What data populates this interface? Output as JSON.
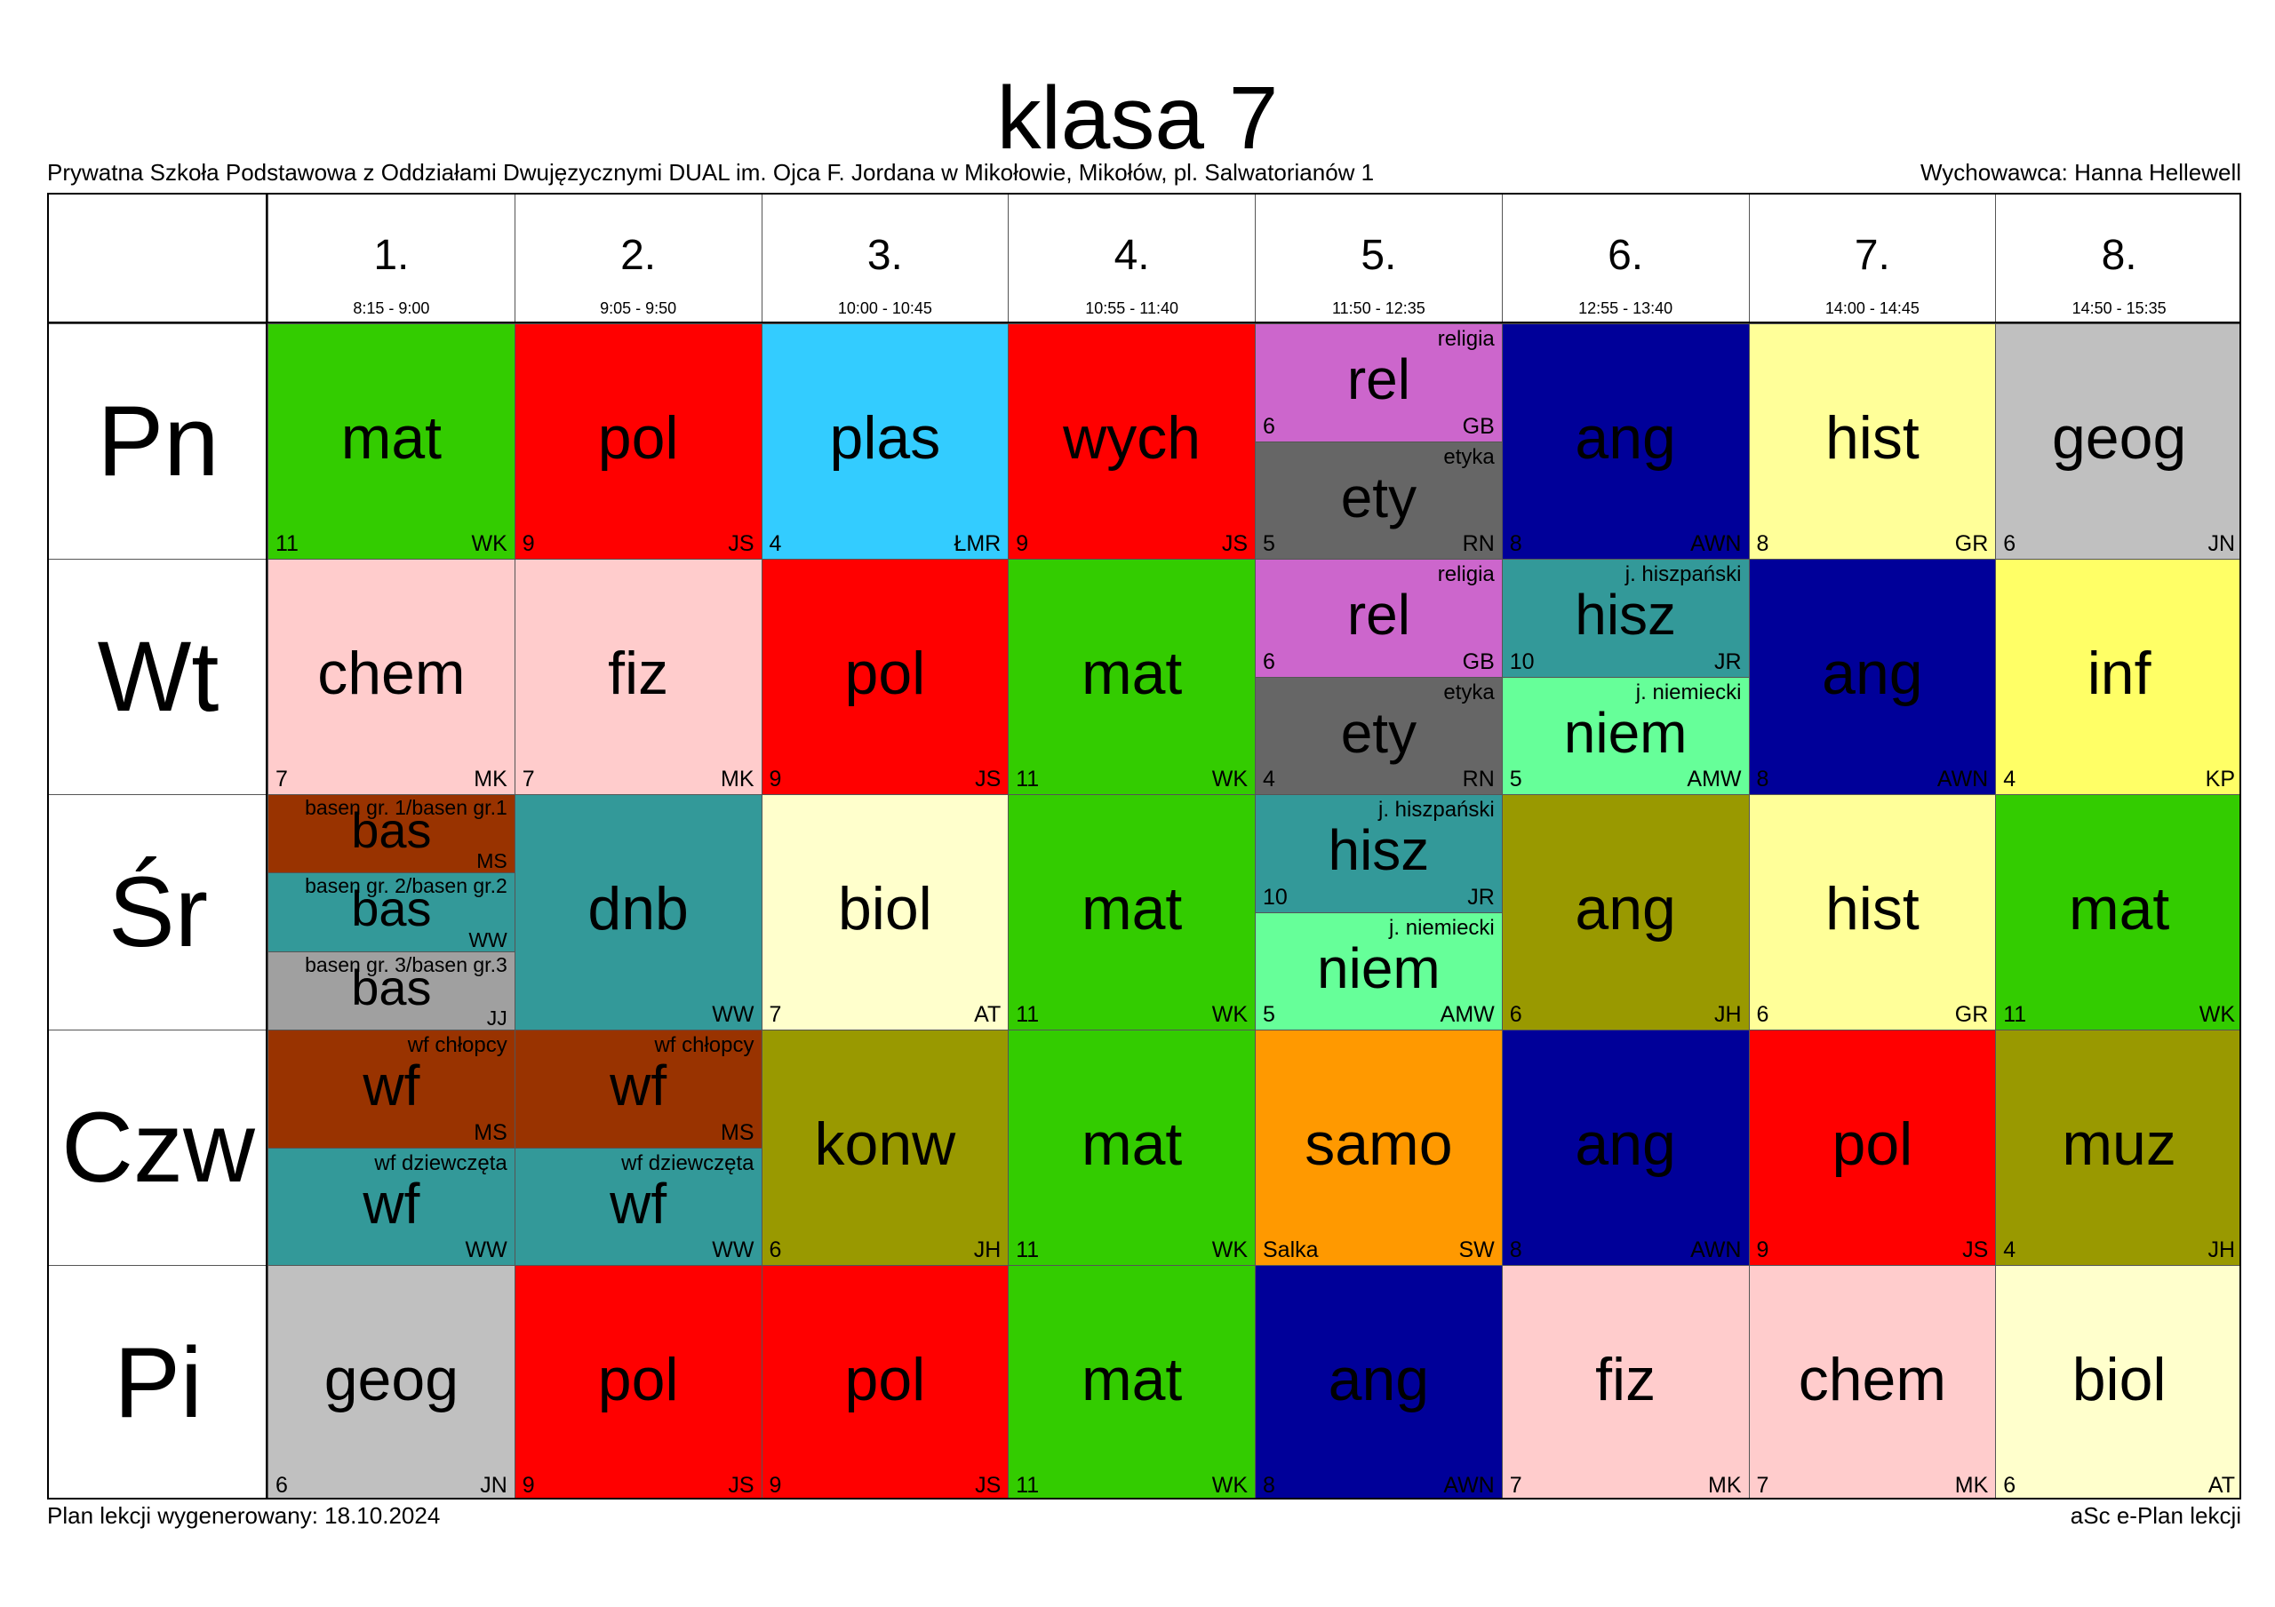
{
  "title": "klasa 7",
  "school": "Prywatna Szkoła Podstawowa z Oddziałami Dwujęzycznymi DUAL im. Ojca F. Jordana w Mikołowie, Mikołów, pl. Salwatorianów 1",
  "homeroom": "Wychowawca: Hanna Hellewell",
  "generated": "Plan lekcji wygenerowany: 18.10.2024",
  "software": "aSc e-Plan lekcji",
  "periods": [
    {
      "num": "1.",
      "time": "8:15 - 9:00"
    },
    {
      "num": "2.",
      "time": "9:05 - 9:50"
    },
    {
      "num": "3.",
      "time": "10:00 - 10:45"
    },
    {
      "num": "4.",
      "time": "10:55 - 11:40"
    },
    {
      "num": "5.",
      "time": "11:50 - 12:35"
    },
    {
      "num": "6.",
      "time": "12:55 - 13:40"
    },
    {
      "num": "7.",
      "time": "14:00 - 14:45"
    },
    {
      "num": "8.",
      "time": "14:50 - 15:35"
    }
  ],
  "days": [
    "Pn",
    "Wt",
    "Śr",
    "Czw",
    "Pi"
  ],
  "lessons": [
    [
      [
        {
          "subject": "mat",
          "room": "11",
          "teacher": "WK",
          "color": "#33cc00"
        }
      ],
      [
        {
          "subject": "pol",
          "room": "9",
          "teacher": "JS",
          "color": "#ff0000"
        }
      ],
      [
        {
          "subject": "plas",
          "room": "4",
          "teacher": "ŁMR",
          "color": "#33ccff"
        }
      ],
      [
        {
          "subject": "wych",
          "room": "9",
          "teacher": "JS",
          "color": "#ff0000"
        }
      ],
      [
        {
          "subject": "rel",
          "name": "religia",
          "room": "6",
          "teacher": "GB",
          "color": "#cc66cc"
        },
        {
          "subject": "ety",
          "name": "etyka",
          "room": "5",
          "teacher": "RN",
          "color": "#666666"
        }
      ],
      [
        {
          "subject": "ang",
          "room": "8",
          "teacher": "AWN",
          "color": "#000099"
        }
      ],
      [
        {
          "subject": "hist",
          "room": "8",
          "teacher": "GR",
          "color": "#ffff99"
        }
      ],
      [
        {
          "subject": "geog",
          "room": "6",
          "teacher": "JN",
          "color": "#c0c0c0"
        }
      ]
    ],
    [
      [
        {
          "subject": "chem",
          "room": "7",
          "teacher": "MK",
          "color": "#ffcccc"
        }
      ],
      [
        {
          "subject": "fiz",
          "room": "7",
          "teacher": "MK",
          "color": "#ffcccc"
        }
      ],
      [
        {
          "subject": "pol",
          "room": "9",
          "teacher": "JS",
          "color": "#ff0000"
        }
      ],
      [
        {
          "subject": "mat",
          "room": "11",
          "teacher": "WK",
          "color": "#33cc00"
        }
      ],
      [
        {
          "subject": "rel",
          "name": "religia",
          "room": "6",
          "teacher": "GB",
          "color": "#cc66cc"
        },
        {
          "subject": "ety",
          "name": "etyka",
          "room": "4",
          "teacher": "RN",
          "color": "#666666"
        }
      ],
      [
        {
          "subject": "hisz",
          "name": "j. hiszpański",
          "room": "10",
          "teacher": "JR",
          "color": "#339999"
        },
        {
          "subject": "niem",
          "name": "j. niemiecki",
          "room": "5",
          "teacher": "AMW",
          "color": "#66ff99"
        }
      ],
      [
        {
          "subject": "ang",
          "room": "8",
          "teacher": "AWN",
          "color": "#000099"
        }
      ],
      [
        {
          "subject": "inf",
          "room": "4",
          "teacher": "KP",
          "color": "#ffff66"
        }
      ]
    ],
    [
      [
        {
          "subject": "bas",
          "name": "basen gr. 1/basen gr.1",
          "teacher": "MS",
          "color": "#993300"
        },
        {
          "subject": "bas",
          "name": "basen gr. 2/basen gr.2",
          "teacher": "WW",
          "color": "#339999"
        },
        {
          "subject": "bas",
          "name": "basen gr. 3/basen gr.3",
          "teacher": "JJ",
          "color": "#a0a0a0"
        }
      ],
      [
        {
          "subject": "dnb",
          "room": "",
          "teacher": "WW",
          "color": "#339999"
        }
      ],
      [
        {
          "subject": "biol",
          "room": "7",
          "teacher": "AT",
          "color": "#ffffcc"
        }
      ],
      [
        {
          "subject": "mat",
          "room": "11",
          "teacher": "WK",
          "color": "#33cc00"
        }
      ],
      [
        {
          "subject": "hisz",
          "name": "j. hiszpański",
          "room": "10",
          "teacher": "JR",
          "color": "#339999"
        },
        {
          "subject": "niem",
          "name": "j. niemiecki",
          "room": "5",
          "teacher": "AMW",
          "color": "#66ff99"
        }
      ],
      [
        {
          "subject": "ang",
          "room": "6",
          "teacher": "JH",
          "color": "#999900"
        }
      ],
      [
        {
          "subject": "hist",
          "room": "6",
          "teacher": "GR",
          "color": "#ffff99"
        }
      ],
      [
        {
          "subject": "mat",
          "room": "11",
          "teacher": "WK",
          "color": "#33cc00"
        }
      ]
    ],
    [
      [
        {
          "subject": "wf",
          "name": "wf chłopcy",
          "room": "",
          "teacher": "MS",
          "color": "#993300"
        },
        {
          "subject": "wf",
          "name": "wf dziewczęta",
          "room": "",
          "teacher": "WW",
          "color": "#339999"
        }
      ],
      [
        {
          "subject": "wf",
          "name": "wf chłopcy",
          "room": "",
          "teacher": "MS",
          "color": "#993300"
        },
        {
          "subject": "wf",
          "name": "wf dziewczęta",
          "room": "",
          "teacher": "WW",
          "color": "#339999"
        }
      ],
      [
        {
          "subject": "konw",
          "room": "6",
          "teacher": "JH",
          "color": "#999900"
        }
      ],
      [
        {
          "subject": "mat",
          "room": "11",
          "teacher": "WK",
          "color": "#33cc00"
        }
      ],
      [
        {
          "subject": "samo",
          "room": "Salka",
          "teacher": "SW",
          "color": "#ff9900"
        }
      ],
      [
        {
          "subject": "ang",
          "room": "8",
          "teacher": "AWN",
          "color": "#000099"
        }
      ],
      [
        {
          "subject": "pol",
          "room": "9",
          "teacher": "JS",
          "color": "#ff0000"
        }
      ],
      [
        {
          "subject": "muz",
          "room": "4",
          "teacher": "JH",
          "color": "#999900"
        }
      ]
    ],
    [
      [
        {
          "subject": "geog",
          "room": "6",
          "teacher": "JN",
          "color": "#c0c0c0"
        }
      ],
      [
        {
          "subject": "pol",
          "room": "9",
          "teacher": "JS",
          "color": "#ff0000"
        }
      ],
      [
        {
          "subject": "pol",
          "room": "9",
          "teacher": "JS",
          "color": "#ff0000"
        }
      ],
      [
        {
          "subject": "mat",
          "room": "11",
          "teacher": "WK",
          "color": "#33cc00"
        }
      ],
      [
        {
          "subject": "ang",
          "room": "8",
          "teacher": "AWN",
          "color": "#000099"
        }
      ],
      [
        {
          "subject": "fiz",
          "room": "7",
          "teacher": "MK",
          "color": "#ffcccc"
        }
      ],
      [
        {
          "subject": "chem",
          "room": "7",
          "teacher": "MK",
          "color": "#ffcccc"
        }
      ],
      [
        {
          "subject": "biol",
          "room": "6",
          "teacher": "AT",
          "color": "#ffffcc"
        }
      ]
    ]
  ]
}
